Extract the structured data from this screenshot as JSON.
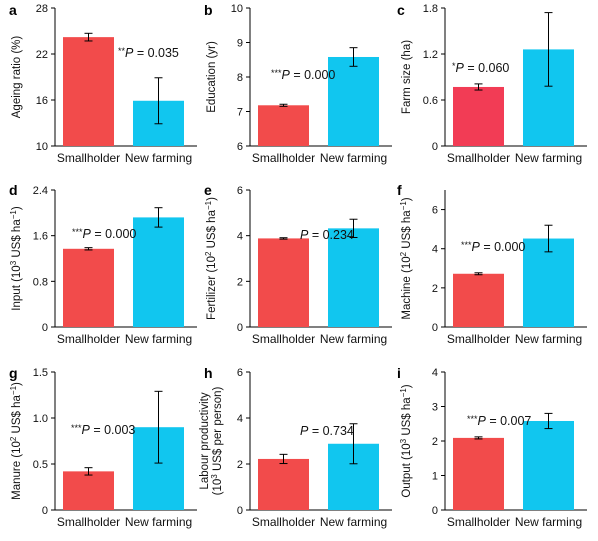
{
  "chart_data": [
    {
      "panel": "a",
      "type": "bar",
      "ylabel": "Ageing ratio (%)",
      "categories": [
        "Smallholder",
        "New farming"
      ],
      "values": [
        24.2,
        15.9
      ],
      "errors": [
        0.5,
        3.0
      ],
      "ylim": [
        10,
        28
      ],
      "yticks": [
        "10",
        "16",
        "22",
        "28"
      ],
      "annotation": {
        "stars": "**",
        "text": " = 0.035"
      }
    },
    {
      "panel": "b",
      "type": "bar",
      "ylabel": "Education (yr)",
      "categories": [
        "Smallholder",
        "New farming"
      ],
      "values": [
        7.18,
        8.58
      ],
      "errors": [
        0.03,
        0.27
      ],
      "ylim": [
        6,
        10
      ],
      "yticks": [
        "6",
        "7",
        "8",
        "9",
        "10"
      ],
      "annotation": {
        "stars": "***",
        "text": " = 0.000"
      }
    },
    {
      "panel": "c",
      "type": "bar",
      "ylabel": "Farm size (ha)",
      "categories": [
        "Smallholder",
        "New farming"
      ],
      "values": [
        0.77,
        1.26
      ],
      "errors": [
        0.04,
        0.48
      ],
      "ylim": [
        0,
        1.8
      ],
      "yticks": [
        "0",
        "0.6",
        "1.2",
        "1.8"
      ],
      "annotation": {
        "stars": "*",
        "text": " = 0.060"
      }
    },
    {
      "panel": "d",
      "type": "bar",
      "ylabel_main": "Input (10",
      "ylabel_sup1": "3",
      "ylabel_mid": " US$ ha",
      "ylabel_sup2": "−1",
      "ylabel_end": ")",
      "categories": [
        "Smallholder",
        "New farming"
      ],
      "values": [
        1.37,
        1.92
      ],
      "errors": [
        0.02,
        0.17
      ],
      "ylim": [
        0,
        2.4
      ],
      "yticks": [
        "0",
        "0.8",
        "1.6",
        "2.4"
      ],
      "annotation": {
        "stars": "***",
        "text": " = 0.000"
      }
    },
    {
      "panel": "e",
      "type": "bar",
      "ylabel_main": "Fertilizer (10",
      "ylabel_sup1": "2",
      "ylabel_mid": " US$ ha",
      "ylabel_sup2": "−1",
      "ylabel_end": ")",
      "categories": [
        "Smallholder",
        "New farming"
      ],
      "values": [
        3.88,
        4.32
      ],
      "errors": [
        0.03,
        0.4
      ],
      "ylim": [
        0,
        6
      ],
      "yticks": [
        "0",
        "2",
        "4",
        "6"
      ],
      "annotation": {
        "stars": "",
        "text": " = 0.234"
      }
    },
    {
      "panel": "f",
      "type": "bar",
      "ylabel_main": "Machine (10",
      "ylabel_sup1": "2",
      "ylabel_mid": " US$ ha",
      "ylabel_sup2": "−1",
      "ylabel_end": ")",
      "categories": [
        "Smallholder",
        "New farming"
      ],
      "values": [
        2.72,
        4.52
      ],
      "errors": [
        0.05,
        0.68
      ],
      "ylim": [
        0,
        7
      ],
      "yticks": [
        "0",
        "2",
        "4",
        "6"
      ],
      "annotation": {
        "stars": "***",
        "text": " = 0.000"
      }
    },
    {
      "panel": "g",
      "type": "bar",
      "ylabel_main": "Manure (10",
      "ylabel_sup1": "2",
      "ylabel_mid": " US$ ha",
      "ylabel_sup2": "−1",
      "ylabel_end": ")",
      "categories": [
        "Smallholder",
        "New farming"
      ],
      "values": [
        0.42,
        0.9
      ],
      "errors": [
        0.04,
        0.39
      ],
      "ylim": [
        0,
        1.5
      ],
      "yticks": [
        "0",
        "0.5",
        "1.0",
        "1.5"
      ],
      "annotation": {
        "stars": "***",
        "text": " = 0.003"
      }
    },
    {
      "panel": "h",
      "type": "bar",
      "ylabel_line1": "Labour productivity",
      "ylabel_main": "(10",
      "ylabel_sup1": "3",
      "ylabel_mid": " US$ per person)",
      "ylabel_sup2": "",
      "ylabel_end": "",
      "categories": [
        "Smallholder",
        "New farming"
      ],
      "values": [
        2.22,
        2.88
      ],
      "errors": [
        0.2,
        0.87
      ],
      "ylim": [
        0,
        6
      ],
      "yticks": [
        "0",
        "2",
        "4",
        "6"
      ],
      "annotation": {
        "stars": "",
        "text": " = 0.734"
      }
    },
    {
      "panel": "i",
      "type": "bar",
      "ylabel_main": "Output (10",
      "ylabel_sup1": "3",
      "ylabel_mid": " US$ ha",
      "ylabel_sup2": "−1",
      "ylabel_end": ")",
      "categories": [
        "Smallholder",
        "New farming"
      ],
      "values": [
        2.09,
        2.58
      ],
      "errors": [
        0.03,
        0.22
      ],
      "ylim": [
        0,
        4
      ],
      "yticks": [
        "0",
        "1",
        "2",
        "3",
        "4"
      ],
      "annotation": {
        "stars": "***",
        "text": " = 0.007"
      }
    }
  ],
  "colors": {
    "smallholder": "#f24b4b",
    "new_farming": "#11c6ef",
    "smallholder_c": "#f23c55"
  }
}
